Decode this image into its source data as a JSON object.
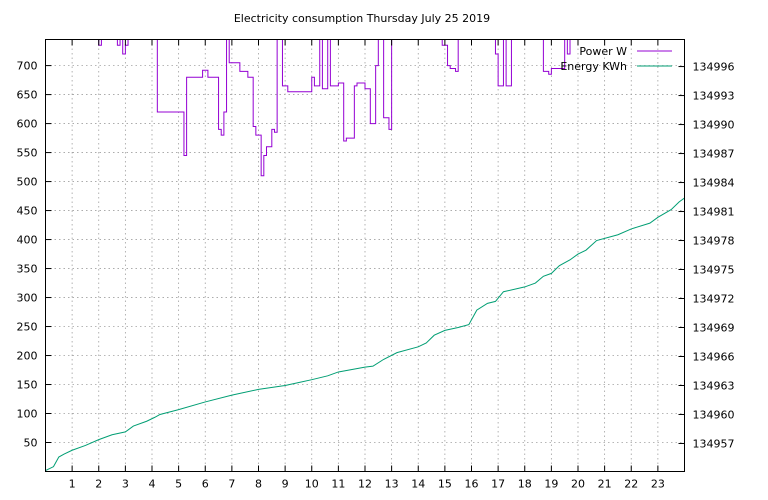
{
  "chart_data": {
    "type": "line",
    "title": "Electricity consumption Thursday July 25 2019",
    "x": {
      "ticks": [
        1,
        2,
        3,
        4,
        5,
        6,
        7,
        8,
        9,
        10,
        11,
        12,
        13,
        14,
        15,
        16,
        17,
        18,
        19,
        20,
        21,
        22,
        23
      ],
      "range": [
        0,
        24
      ]
    },
    "y_left": {
      "ticks": [
        50,
        100,
        150,
        200,
        250,
        300,
        350,
        400,
        450,
        500,
        550,
        600,
        650,
        700
      ],
      "range": [
        0,
        745
      ]
    },
    "y_right": {
      "ticks": [
        134957,
        134960,
        134963,
        134966,
        134969,
        134972,
        134975,
        134978,
        134981,
        134984,
        134987,
        134990,
        134993,
        134996
      ],
      "range": [
        134954.1,
        134998.8
      ]
    },
    "grid": true,
    "legend_position": "top-right",
    "series": [
      {
        "name": "Power W",
        "axis": "left",
        "color": "#9400d3",
        "step": true,
        "x": [
          0,
          1.9,
          2.0,
          2.1,
          2.2,
          2.7,
          2.8,
          2.9,
          3.0,
          3.1,
          4.2,
          4.3,
          5.1,
          5.2,
          5.3,
          5.8,
          5.9,
          6.1,
          6.2,
          6.5,
          6.6,
          6.7,
          6.8,
          6.9,
          7.2,
          7.3,
          7.5,
          7.6,
          7.8,
          7.9,
          8.1,
          8.2,
          8.3,
          8.5,
          8.6,
          8.7,
          8.9,
          9.0,
          9.1,
          9.3,
          9.5,
          10.0,
          10.1,
          10.3,
          10.4,
          10.6,
          10.7,
          11.0,
          11.2,
          11.3,
          11.6,
          11.7,
          12.0,
          12.2,
          12.4,
          12.5,
          12.7,
          12.9,
          13.0,
          13.2,
          13.3,
          14.5,
          14.6,
          14.8,
          14.9,
          15.1,
          15.2,
          15.4,
          15.5,
          15.6,
          16.0,
          16.1,
          16.9,
          17.0,
          17.2,
          17.3,
          17.4,
          17.5,
          18.0,
          18.1,
          18.6,
          18.7,
          18.9,
          19.0,
          19.5,
          19.6,
          19.7,
          19.9,
          20.0,
          24.0
        ],
        "y": [
          745,
          745,
          735,
          745,
          745,
          735,
          745,
          720,
          735,
          745,
          620,
          620,
          620,
          545,
          680,
          680,
          692,
          680,
          680,
          590,
          580,
          620,
          745,
          705,
          705,
          690,
          690,
          680,
          595,
          580,
          510,
          545,
          560,
          590,
          585,
          745,
          665,
          665,
          655,
          655,
          655,
          680,
          665,
          745,
          660,
          745,
          665,
          670,
          570,
          575,
          665,
          670,
          660,
          600,
          700,
          745,
          610,
          590,
          745,
          745,
          745,
          745,
          745,
          745,
          735,
          700,
          695,
          690,
          745,
          745,
          745,
          745,
          720,
          665,
          745,
          665,
          665,
          745,
          745,
          745,
          745,
          690,
          685,
          695,
          745,
          720,
          745,
          745,
          745,
          745
        ]
      },
      {
        "name": "Energy KWh",
        "axis": "right",
        "color": "#009e73",
        "step": false,
        "x": [
          0,
          0.3,
          0.5,
          0.7,
          1.0,
          1.5,
          2.0,
          2.5,
          3.0,
          3.3,
          3.8,
          4.1,
          4.3,
          5.0,
          6.0,
          7.0,
          8.0,
          9.0,
          10.0,
          10.6,
          11.0,
          12.0,
          12.3,
          12.7,
          13.2,
          14.0,
          14.3,
          14.6,
          15.0,
          15.5,
          15.9,
          16.2,
          16.6,
          16.9,
          17.2,
          18.0,
          18.4,
          18.7,
          19.0,
          19.3,
          19.7,
          20.0,
          20.3,
          20.7,
          21.5,
          22.0,
          22.7,
          23.0,
          23.5,
          23.8,
          24.0
        ],
        "y": [
          134954.2,
          134954.6,
          134955.6,
          134955.9,
          134956.3,
          134956.8,
          134957.4,
          134957.9,
          134958.2,
          134958.8,
          134959.3,
          134959.7,
          134960.0,
          134960.5,
          134961.3,
          134962.0,
          134962.6,
          134963.0,
          134963.6,
          134964.0,
          134964.4,
          134964.9,
          134965.0,
          134965.7,
          134966.4,
          134967.0,
          134967.4,
          134968.2,
          134968.7,
          134969.0,
          134969.3,
          134970.8,
          134971.5,
          134971.7,
          134972.7,
          134973.2,
          134973.6,
          134974.3,
          134974.6,
          134975.4,
          134976.0,
          134976.6,
          134977.0,
          134978.0,
          134978.6,
          134979.2,
          134979.8,
          134980.4,
          134981.2,
          134982.0,
          134982.4
        ]
      }
    ]
  }
}
